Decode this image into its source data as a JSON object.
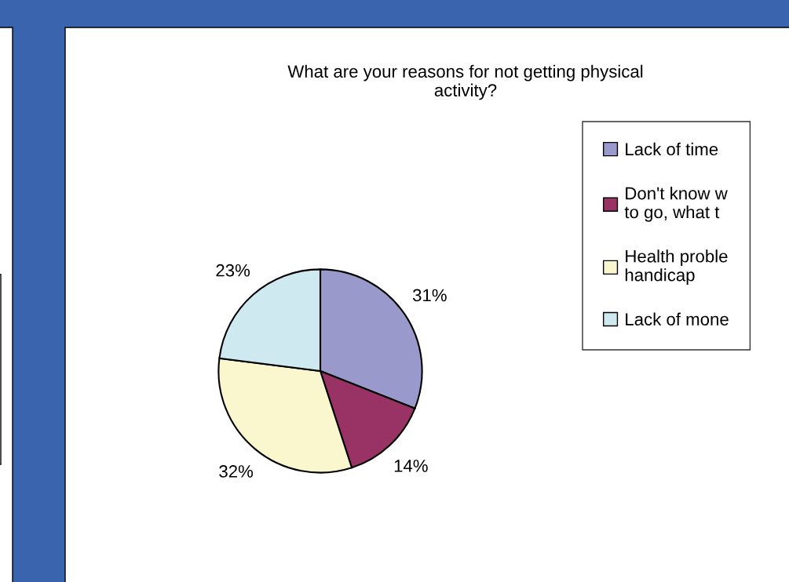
{
  "chart_data": {
    "type": "pie",
    "title": "What are your reasons for not getting physical\nactivity?",
    "categories": [
      "Lack of time",
      "Don't know w\nto go, what t",
      "Health proble\nhandicap",
      "Lack of mone"
    ],
    "values": [
      31,
      14,
      32,
      23
    ],
    "colors": [
      "#9999cc",
      "#993366",
      "#faf7cf",
      "#cfe9f0"
    ],
    "value_labels": [
      "31%",
      "14%",
      "32%",
      "23%"
    ],
    "legend": "right"
  }
}
